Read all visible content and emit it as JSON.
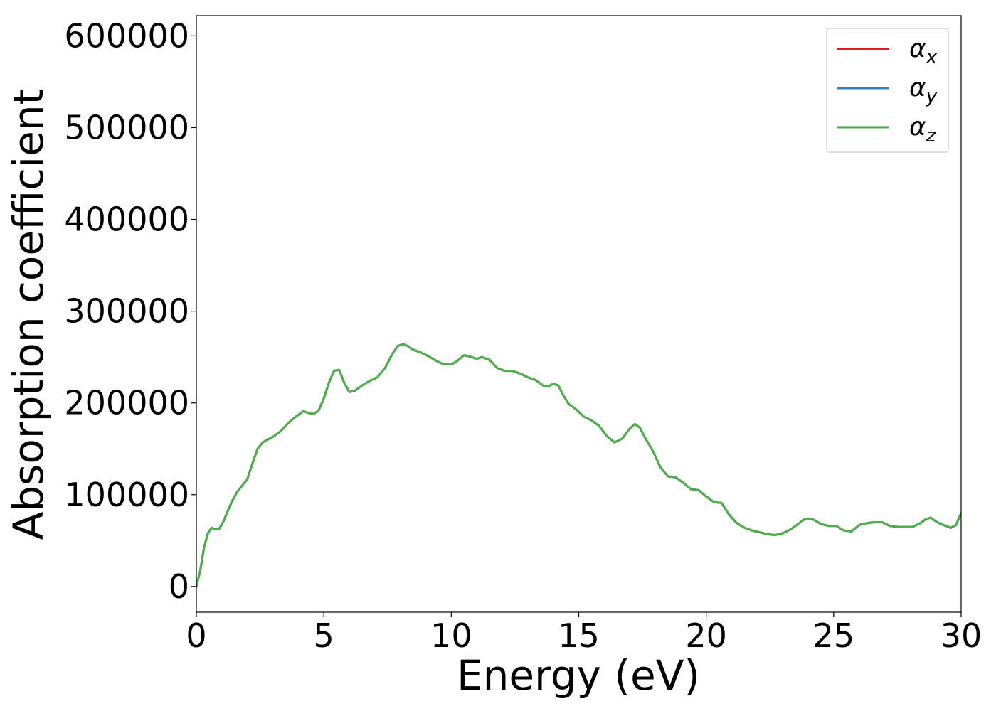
{
  "chart_data": {
    "type": "line",
    "title": "",
    "xlabel": "Energy (eV)",
    "ylabel": "Absorption coefficient",
    "xlim": [
      0,
      30
    ],
    "ylim": [
      -28000,
      622000
    ],
    "xticks": [
      "0",
      "5",
      "10",
      "15",
      "20",
      "25",
      "30"
    ],
    "yticks": [
      "0",
      "100000",
      "200000",
      "300000",
      "400000",
      "500000",
      "600000"
    ],
    "grid": false,
    "legend_position": "top-right",
    "legend": [
      {
        "symbol": "α",
        "subscript": "x",
        "color": "#e41a1c"
      },
      {
        "symbol": "α",
        "subscript": "y",
        "color": "#377eb8"
      },
      {
        "symbol": "α",
        "subscript": "z",
        "color": "#4daf4a"
      }
    ],
    "series": [
      {
        "name": "α_x",
        "color": "#e41a1c",
        "x": [
          0,
          0.15,
          0.3,
          0.45,
          0.6,
          0.75,
          0.9,
          1.05,
          1.2,
          1.4,
          1.6,
          1.8,
          2.0,
          2.2,
          2.4,
          2.6,
          2.8,
          3.0,
          3.3,
          3.6,
          3.9,
          4.2,
          4.4,
          4.6,
          4.8,
          5.0,
          5.2,
          5.4,
          5.6,
          5.8,
          6.0,
          6.2,
          6.5,
          6.8,
          7.1,
          7.4,
          7.7,
          7.9,
          8.1,
          8.3,
          8.5,
          8.8,
          9.1,
          9.4,
          9.7,
          10.0,
          10.2,
          10.5,
          10.8,
          11.0,
          11.2,
          11.5,
          11.8,
          12.1,
          12.4,
          12.7,
          13.0,
          13.3,
          13.6,
          13.8,
          14.0,
          14.2,
          14.4,
          14.6,
          14.9,
          15.2,
          15.5,
          15.8,
          16.1,
          16.4,
          16.7,
          17.0,
          17.2,
          17.4,
          17.6,
          17.9,
          18.2,
          18.5,
          18.8,
          19.1,
          19.4,
          19.7,
          20.0,
          20.3,
          20.6,
          20.9,
          21.2,
          21.5,
          21.8,
          22.1,
          22.4,
          22.7,
          23.0,
          23.3,
          23.6,
          23.9,
          24.2,
          24.5,
          24.8,
          25.1,
          25.4,
          25.7,
          26.0,
          26.3,
          26.6,
          26.9,
          27.2,
          27.5,
          27.8,
          28.1,
          28.4,
          28.6,
          28.8,
          29.0,
          29.2,
          29.4,
          29.6,
          29.8,
          30.0
        ],
        "y": [
          0,
          17000,
          42000,
          58000,
          64000,
          62000,
          63000,
          70000,
          80000,
          93000,
          103000,
          110000,
          117000,
          134000,
          150000,
          157000,
          160000,
          163000,
          169000,
          178000,
          185000,
          191000,
          189000,
          188000,
          192000,
          205000,
          222000,
          235000,
          236000,
          222000,
          212000,
          213000,
          219000,
          224000,
          228000,
          238000,
          254000,
          262000,
          264000,
          262000,
          258000,
          255000,
          251000,
          246000,
          242000,
          242000,
          245000,
          252000,
          250000,
          248000,
          250000,
          247000,
          238000,
          235000,
          235000,
          232000,
          228000,
          225000,
          219000,
          218000,
          221000,
          219000,
          208000,
          199000,
          193000,
          185000,
          181000,
          175000,
          164000,
          157000,
          161000,
          172000,
          177000,
          173000,
          162000,
          148000,
          130000,
          120000,
          119000,
          113000,
          106000,
          105000,
          98000,
          92000,
          91000,
          78000,
          69000,
          64000,
          61000,
          59000,
          57000,
          56000,
          58000,
          62000,
          68000,
          74000,
          73000,
          68000,
          66000,
          66000,
          61000,
          60000,
          67000,
          69000,
          70000,
          70000,
          66000,
          65000,
          65000,
          65000,
          69000,
          73000,
          75000,
          71000,
          68000,
          66000,
          64000,
          67000,
          80000
        ]
      },
      {
        "name": "α_y",
        "color": "#377eb8",
        "x": [
          0,
          0.15,
          0.3,
          0.45,
          0.6,
          0.75,
          0.9,
          1.05,
          1.2,
          1.4,
          1.6,
          1.8,
          2.0,
          2.2,
          2.4,
          2.6,
          2.8,
          3.0,
          3.3,
          3.6,
          3.9,
          4.2,
          4.4,
          4.6,
          4.8,
          5.0,
          5.2,
          5.4,
          5.6,
          5.8,
          6.0,
          6.2,
          6.5,
          6.8,
          7.1,
          7.4,
          7.7,
          7.9,
          8.1,
          8.3,
          8.5,
          8.8,
          9.1,
          9.4,
          9.7,
          10.0,
          10.2,
          10.5,
          10.8,
          11.0,
          11.2,
          11.5,
          11.8,
          12.1,
          12.4,
          12.7,
          13.0,
          13.3,
          13.6,
          13.8,
          14.0,
          14.2,
          14.4,
          14.6,
          14.9,
          15.2,
          15.5,
          15.8,
          16.1,
          16.4,
          16.7,
          17.0,
          17.2,
          17.4,
          17.6,
          17.9,
          18.2,
          18.5,
          18.8,
          19.1,
          19.4,
          19.7,
          20.0,
          20.3,
          20.6,
          20.9,
          21.2,
          21.5,
          21.8,
          22.1,
          22.4,
          22.7,
          23.0,
          23.3,
          23.6,
          23.9,
          24.2,
          24.5,
          24.8,
          25.1,
          25.4,
          25.7,
          26.0,
          26.3,
          26.6,
          26.9,
          27.2,
          27.5,
          27.8,
          28.1,
          28.4,
          28.6,
          28.8,
          29.0,
          29.2,
          29.4,
          29.6,
          29.8,
          30.0
        ],
        "y": [
          0,
          17000,
          42000,
          58000,
          64000,
          62000,
          63000,
          70000,
          80000,
          93000,
          103000,
          110000,
          117000,
          134000,
          150000,
          157000,
          160000,
          163000,
          169000,
          178000,
          185000,
          191000,
          189000,
          188000,
          192000,
          205000,
          222000,
          235000,
          236000,
          222000,
          212000,
          213000,
          219000,
          224000,
          228000,
          238000,
          254000,
          262000,
          264000,
          262000,
          258000,
          255000,
          251000,
          246000,
          242000,
          242000,
          245000,
          252000,
          250000,
          248000,
          250000,
          247000,
          238000,
          235000,
          235000,
          232000,
          228000,
          225000,
          219000,
          218000,
          221000,
          219000,
          208000,
          199000,
          193000,
          185000,
          181000,
          175000,
          164000,
          157000,
          161000,
          172000,
          177000,
          173000,
          162000,
          148000,
          130000,
          120000,
          119000,
          113000,
          106000,
          105000,
          98000,
          92000,
          91000,
          78000,
          69000,
          64000,
          61000,
          59000,
          57000,
          56000,
          58000,
          62000,
          68000,
          74000,
          73000,
          68000,
          66000,
          66000,
          61000,
          60000,
          67000,
          69000,
          70000,
          70000,
          66000,
          65000,
          65000,
          65000,
          69000,
          73000,
          75000,
          71000,
          68000,
          66000,
          64000,
          67000,
          80000
        ]
      },
      {
        "name": "α_z",
        "color": "#4daf4a",
        "x": [
          0,
          0.15,
          0.3,
          0.45,
          0.6,
          0.75,
          0.9,
          1.05,
          1.2,
          1.4,
          1.6,
          1.8,
          2.0,
          2.2,
          2.4,
          2.6,
          2.8,
          3.0,
          3.3,
          3.6,
          3.9,
          4.2,
          4.4,
          4.6,
          4.8,
          5.0,
          5.2,
          5.4,
          5.6,
          5.8,
          6.0,
          6.2,
          6.5,
          6.8,
          7.1,
          7.4,
          7.7,
          7.9,
          8.1,
          8.3,
          8.5,
          8.8,
          9.1,
          9.4,
          9.7,
          10.0,
          10.2,
          10.5,
          10.8,
          11.0,
          11.2,
          11.5,
          11.8,
          12.1,
          12.4,
          12.7,
          13.0,
          13.3,
          13.6,
          13.8,
          14.0,
          14.2,
          14.4,
          14.6,
          14.9,
          15.2,
          15.5,
          15.8,
          16.1,
          16.4,
          16.7,
          17.0,
          17.2,
          17.4,
          17.6,
          17.9,
          18.2,
          18.5,
          18.8,
          19.1,
          19.4,
          19.7,
          20.0,
          20.3,
          20.6,
          20.9,
          21.2,
          21.5,
          21.8,
          22.1,
          22.4,
          22.7,
          23.0,
          23.3,
          23.6,
          23.9,
          24.2,
          24.5,
          24.8,
          25.1,
          25.4,
          25.7,
          26.0,
          26.3,
          26.6,
          26.9,
          27.2,
          27.5,
          27.8,
          28.1,
          28.4,
          28.6,
          28.8,
          29.0,
          29.2,
          29.4,
          29.6,
          29.8,
          30.0
        ],
        "y": [
          0,
          17000,
          42000,
          58000,
          64000,
          62000,
          63000,
          70000,
          80000,
          93000,
          103000,
          110000,
          117000,
          134000,
          150000,
          157000,
          160000,
          163000,
          169000,
          178000,
          185000,
          191000,
          189000,
          188000,
          192000,
          205000,
          222000,
          235000,
          236000,
          222000,
          212000,
          213000,
          219000,
          224000,
          228000,
          238000,
          254000,
          262000,
          264000,
          262000,
          258000,
          255000,
          251000,
          246000,
          242000,
          242000,
          245000,
          252000,
          250000,
          248000,
          250000,
          247000,
          238000,
          235000,
          235000,
          232000,
          228000,
          225000,
          219000,
          218000,
          221000,
          219000,
          208000,
          199000,
          193000,
          185000,
          181000,
          175000,
          164000,
          157000,
          161000,
          172000,
          177000,
          173000,
          162000,
          148000,
          130000,
          120000,
          119000,
          113000,
          106000,
          105000,
          98000,
          92000,
          91000,
          78000,
          69000,
          64000,
          61000,
          59000,
          57000,
          56000,
          58000,
          62000,
          68000,
          74000,
          73000,
          68000,
          66000,
          66000,
          61000,
          60000,
          67000,
          69000,
          70000,
          70000,
          66000,
          65000,
          65000,
          65000,
          69000,
          73000,
          75000,
          71000,
          68000,
          66000,
          64000,
          67000,
          80000
        ]
      }
    ]
  }
}
